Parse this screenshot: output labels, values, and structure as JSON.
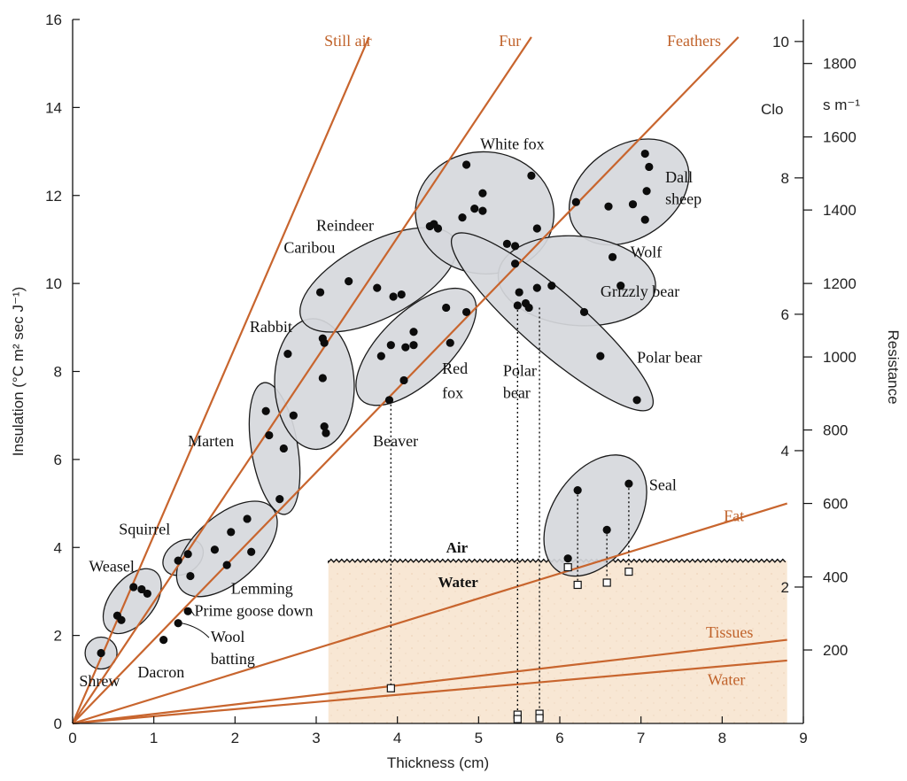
{
  "chart_data": {
    "type": "scatter",
    "title": "",
    "xlabel": "Thickness (cm)",
    "ylabel": "Insulation (°C m² sec J⁻¹)",
    "xlim": [
      0,
      9
    ],
    "ylim": [
      0,
      16
    ],
    "xticks": [
      "0",
      "1",
      "2",
      "3",
      "4",
      "5",
      "6",
      "7",
      "8",
      "9"
    ],
    "yticks": [
      "0",
      "2",
      "4",
      "6",
      "8",
      "10",
      "12",
      "14",
      "16"
    ],
    "right_axes": {
      "clo": {
        "label": "Clo",
        "ticks": [
          {
            "label": "2",
            "y": 3.1
          },
          {
            "label": "4",
            "y": 6.2
          },
          {
            "label": "6",
            "y": 9.3
          },
          {
            "label": "8",
            "y": 12.4
          },
          {
            "label": "10",
            "y": 15.5
          }
        ]
      },
      "resistance": {
        "label": "Resistance",
        "unit": "s m⁻¹",
        "ticks": [
          {
            "label": "200",
            "y": 1.67
          },
          {
            "label": "400",
            "y": 3.33
          },
          {
            "label": "600",
            "y": 5.0
          },
          {
            "label": "800",
            "y": 6.67
          },
          {
            "label": "1000",
            "y": 8.33
          },
          {
            "label": "1200",
            "y": 10.0
          },
          {
            "label": "1400",
            "y": 11.67
          },
          {
            "label": "1600",
            "y": 13.33
          },
          {
            "label": "1800",
            "y": 15.0
          }
        ]
      }
    },
    "reference_lines": [
      {
        "name": "Still air",
        "x": [
          0,
          3.65
        ],
        "y": [
          0,
          15.6
        ]
      },
      {
        "name": "Fur",
        "x": [
          0,
          5.65
        ],
        "y": [
          0,
          15.6
        ]
      },
      {
        "name": "Feathers",
        "x": [
          0,
          8.2
        ],
        "y": [
          0,
          15.6
        ]
      },
      {
        "name": "Fat",
        "x": [
          0,
          8.8
        ],
        "y": [
          0,
          5.0
        ]
      },
      {
        "name": "Tissues",
        "x": [
          0,
          8.8
        ],
        "y": [
          0,
          1.9
        ]
      },
      {
        "name": "Water",
        "x": [
          0,
          8.8
        ],
        "y": [
          0,
          1.43
        ]
      }
    ],
    "water_region": {
      "x0": 3.15,
      "x1": 8.8,
      "y_surface": 3.7,
      "air_label": "Air",
      "water_label": "Water"
    },
    "series": [
      {
        "name": "Shrew",
        "points": [
          [
            0.35,
            1.6
          ]
        ]
      },
      {
        "name": "Weasel",
        "points": [
          [
            0.55,
            2.45
          ],
          [
            0.6,
            2.35
          ],
          [
            0.75,
            3.1
          ],
          [
            0.85,
            3.05
          ],
          [
            0.92,
            2.95
          ]
        ]
      },
      {
        "name": "Squirrel",
        "points": [
          [
            1.3,
            3.7
          ],
          [
            1.42,
            3.85
          ]
        ]
      },
      {
        "name": "Lemming",
        "points": [
          [
            1.45,
            3.35
          ],
          [
            1.75,
            3.95
          ],
          [
            1.9,
            3.6
          ],
          [
            1.95,
            4.35
          ],
          [
            2.15,
            4.65
          ],
          [
            2.2,
            3.9
          ]
        ]
      },
      {
        "name": "Marten",
        "points": [
          [
            2.38,
            7.1
          ],
          [
            2.42,
            6.55
          ],
          [
            2.6,
            6.25
          ],
          [
            2.55,
            5.1
          ]
        ]
      },
      {
        "name": "Rabbit",
        "points": [
          [
            2.65,
            8.4
          ],
          [
            2.72,
            7.0
          ],
          [
            3.08,
            8.75
          ],
          [
            3.1,
            8.65
          ],
          [
            3.08,
            7.85
          ],
          [
            3.1,
            6.75
          ],
          [
            3.12,
            6.6
          ]
        ]
      },
      {
        "name": "Red fox",
        "points": [
          [
            3.8,
            8.35
          ],
          [
            3.92,
            8.6
          ],
          [
            4.1,
            8.55
          ],
          [
            4.2,
            8.6
          ],
          [
            4.2,
            8.9
          ],
          [
            4.6,
            9.45
          ],
          [
            4.65,
            8.65
          ],
          [
            4.85,
            9.35
          ],
          [
            4.08,
            7.8
          ],
          [
            3.9,
            7.35
          ]
        ]
      },
      {
        "name": "Reindeer Caribou",
        "points": [
          [
            3.05,
            9.8
          ],
          [
            3.4,
            10.05
          ],
          [
            3.75,
            9.9
          ],
          [
            3.95,
            9.7
          ],
          [
            4.05,
            9.75
          ],
          [
            4.4,
            11.3
          ]
        ]
      },
      {
        "name": "White fox",
        "points": [
          [
            4.45,
            11.35
          ],
          [
            4.5,
            11.25
          ],
          [
            4.8,
            11.5
          ],
          [
            4.85,
            12.7
          ],
          [
            4.95,
            11.7
          ],
          [
            5.05,
            11.65
          ],
          [
            5.05,
            12.05
          ],
          [
            5.35,
            10.9
          ],
          [
            5.45,
            10.85
          ],
          [
            5.65,
            12.45
          ],
          [
            5.72,
            11.25
          ]
        ]
      },
      {
        "name": "Dall sheep",
        "points": [
          [
            6.2,
            11.85
          ],
          [
            6.6,
            11.75
          ],
          [
            6.9,
            11.8
          ],
          [
            7.05,
            12.95
          ],
          [
            7.1,
            12.65
          ],
          [
            7.07,
            12.1
          ],
          [
            7.05,
            11.45
          ]
        ]
      },
      {
        "name": "Wolf",
        "points": [
          [
            5.45,
            10.45
          ],
          [
            5.9,
            9.95
          ],
          [
            6.3,
            9.35
          ],
          [
            6.65,
            10.6
          ],
          [
            6.75,
            9.95
          ]
        ]
      },
      {
        "name": "Polar bear",
        "points": [
          [
            5.5,
            9.8
          ],
          [
            5.48,
            9.5
          ],
          [
            5.58,
            9.55
          ],
          [
            5.62,
            9.45
          ],
          [
            5.72,
            9.9
          ],
          [
            6.5,
            8.35
          ],
          [
            6.95,
            7.35
          ]
        ]
      },
      {
        "name": "Seal",
        "points": [
          [
            6.1,
            3.75
          ],
          [
            6.22,
            5.3
          ],
          [
            6.58,
            4.4
          ],
          [
            6.85,
            5.45
          ]
        ]
      },
      {
        "name": "Prime goose down",
        "points": [
          [
            1.42,
            2.55
          ]
        ]
      },
      {
        "name": "Wool batting",
        "points": [
          [
            1.3,
            2.28
          ]
        ]
      },
      {
        "name": "Dacron",
        "points": [
          [
            1.12,
            1.9
          ]
        ]
      }
    ],
    "water_measurements": [
      [
        3.92,
        0.8
      ],
      [
        5.48,
        0.2
      ],
      [
        5.48,
        0.1
      ],
      [
        5.75,
        0.22
      ],
      [
        5.75,
        0.12
      ],
      [
        6.1,
        3.55
      ],
      [
        6.22,
        3.15
      ],
      [
        6.58,
        3.2
      ],
      [
        6.85,
        3.45
      ]
    ],
    "dotted_links": [
      [
        3.92,
        7.35,
        0.8
      ],
      [
        5.48,
        9.5,
        0.1
      ],
      [
        5.75,
        9.45,
        0.12
      ],
      [
        6.22,
        5.3,
        3.15
      ],
      [
        6.58,
        4.4,
        3.2
      ],
      [
        6.85,
        5.45,
        3.45
      ]
    ],
    "annotations": [
      {
        "text": "Still air",
        "x": 3.1,
        "y": 15.4,
        "kind": "line"
      },
      {
        "text": "Fur",
        "x": 5.25,
        "y": 15.4,
        "kind": "line"
      },
      {
        "text": "Feathers",
        "x": 7.32,
        "y": 15.4,
        "kind": "line"
      },
      {
        "text": "Fat",
        "x": 8.02,
        "y": 4.6,
        "kind": "line"
      },
      {
        "text": "Tissues",
        "x": 7.8,
        "y": 1.95,
        "kind": "line"
      },
      {
        "text": "Water",
        "x": 7.82,
        "y": 0.88,
        "kind": "line"
      },
      {
        "text": "White fox",
        "x": 5.02,
        "y": 13.05,
        "kind": "group"
      },
      {
        "text": "Dall",
        "x": 7.3,
        "y": 12.3,
        "kind": "group"
      },
      {
        "text": "sheep",
        "x": 7.3,
        "y": 11.8,
        "kind": "group"
      },
      {
        "text": "Reindeer",
        "x": 3.0,
        "y": 11.2,
        "kind": "group"
      },
      {
        "text": "Caribou",
        "x": 2.6,
        "y": 10.7,
        "kind": "group"
      },
      {
        "text": "Wolf",
        "x": 6.87,
        "y": 10.6,
        "kind": "group"
      },
      {
        "text": "Grizzly bear",
        "x": 6.5,
        "y": 9.7,
        "kind": "group"
      },
      {
        "text": "Rabbit",
        "x": 2.18,
        "y": 8.9,
        "kind": "group"
      },
      {
        "text": "Red",
        "x": 4.55,
        "y": 7.95,
        "kind": "group"
      },
      {
        "text": "fox",
        "x": 4.55,
        "y": 7.4,
        "kind": "group"
      },
      {
        "text": "Polar",
        "x": 5.3,
        "y": 7.9,
        "kind": "group"
      },
      {
        "text": "bear",
        "x": 5.3,
        "y": 7.4,
        "kind": "group"
      },
      {
        "text": "Polar bear",
        "x": 6.95,
        "y": 8.2,
        "kind": "group"
      },
      {
        "text": "Marten",
        "x": 1.42,
        "y": 6.3,
        "kind": "group"
      },
      {
        "text": "Beaver",
        "x": 3.7,
        "y": 6.3,
        "kind": "group"
      },
      {
        "text": "Seal",
        "x": 7.1,
        "y": 5.3,
        "kind": "group"
      },
      {
        "text": "Squirrel",
        "x": 0.57,
        "y": 4.3,
        "kind": "group"
      },
      {
        "text": "Lemming",
        "x": 1.95,
        "y": 2.95,
        "kind": "group"
      },
      {
        "text": "Weasel",
        "x": 0.2,
        "y": 3.45,
        "kind": "group"
      },
      {
        "text": "Prime goose down",
        "x": 1.5,
        "y": 2.45,
        "kind": "group"
      },
      {
        "text": "Wool",
        "x": 1.7,
        "y": 1.85,
        "kind": "group"
      },
      {
        "text": "batting",
        "x": 1.7,
        "y": 1.35,
        "kind": "group"
      },
      {
        "text": "Dacron",
        "x": 0.8,
        "y": 1.05,
        "kind": "group"
      },
      {
        "text": "Shrew",
        "x": 0.08,
        "y": 0.85,
        "kind": "group"
      },
      {
        "text": "Air",
        "x": 4.6,
        "y": 3.88,
        "kind": "bold"
      },
      {
        "text": "Water",
        "x": 4.5,
        "y": 3.1,
        "kind": "bold"
      }
    ],
    "grid": false,
    "legend": "none"
  }
}
